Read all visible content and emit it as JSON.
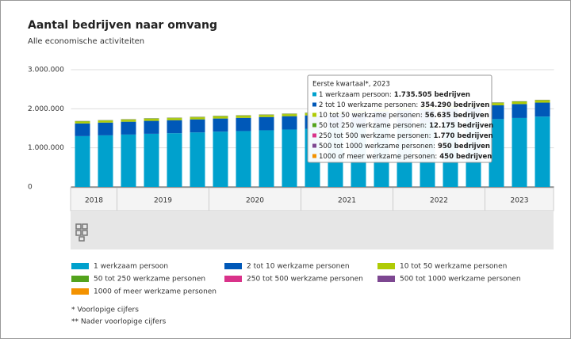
{
  "chart_data": {
    "type": "stacked_bar",
    "title": "Aantal bedrijven naar omvang",
    "subtitle": "Alle economische activiteiten",
    "categories": [
      null,
      null,
      null,
      null,
      null,
      null,
      null,
      null,
      null,
      null,
      null,
      null,
      null,
      null,
      null,
      null,
      null,
      null,
      null,
      null,
      null
    ],
    "x_groups": [
      {
        "label": "2018",
        "count": 2
      },
      {
        "label": "2019",
        "count": 4
      },
      {
        "label": "2020",
        "count": 4
      },
      {
        "label": "2021",
        "count": 4
      },
      {
        "label": "2022",
        "count": 4
      },
      {
        "label": "2023",
        "count": 3
      }
    ],
    "ylim": [
      0,
      3000000
    ],
    "yticks": [
      {
        "value": 0,
        "label": "0"
      },
      {
        "value": 1000000,
        "label": "1.000.000"
      },
      {
        "value": 2000000,
        "label": "2.000.000"
      },
      {
        "value": 3000000,
        "label": "3.000.000"
      }
    ],
    "series": [
      {
        "name": "1 werkzaam persoon",
        "color": "#00a1cd",
        "values": [
          1300000,
          1320000,
          1340000,
          1360000,
          1375000,
          1395000,
          1415000,
          1430000,
          1450000,
          1470000,
          1490000,
          1520000,
          1550000,
          1580000,
          1610000,
          1635000,
          1660000,
          1690000,
          1735505,
          1765000,
          1800000
        ]
      },
      {
        "name": "2 tot 10 werkzame personen",
        "color": "#0058b8",
        "values": [
          325000,
          327000,
          329000,
          331000,
          333000,
          334000,
          336000,
          338000,
          339000,
          340000,
          341000,
          342000,
          344000,
          346000,
          348000,
          349000,
          350000,
          352000,
          354290,
          356000,
          358000
        ]
      },
      {
        "name": "10 tot 50 werkzame personen",
        "color": "#afcb05",
        "values": [
          50000,
          50500,
          51000,
          51500,
          52000,
          52300,
          52600,
          52900,
          52000,
          52500,
          53000,
          53500,
          54000,
          54500,
          55000,
          55500,
          56000,
          56300,
          56635,
          57000,
          57300
        ]
      },
      {
        "name": "50 tot 250 werkzame personen",
        "color": "#53a31d",
        "values": [
          11000,
          11100,
          11200,
          11300,
          11400,
          11450,
          11500,
          11550,
          11500,
          11550,
          11600,
          11650,
          11700,
          11800,
          11900,
          12000,
          12050,
          12100,
          12175,
          12200,
          12250
        ]
      },
      {
        "name": "250 tot 500 werkzame personen",
        "color": "#d9328a",
        "values": [
          1600,
          1610,
          1620,
          1630,
          1640,
          1650,
          1660,
          1670,
          1660,
          1670,
          1680,
          1690,
          1700,
          1710,
          1720,
          1730,
          1740,
          1750,
          1770,
          1775,
          1780
        ]
      },
      {
        "name": "500 tot 1000 werkzame personen",
        "color": "#7d4791",
        "values": [
          850,
          855,
          860,
          865,
          870,
          875,
          880,
          885,
          880,
          885,
          890,
          895,
          900,
          910,
          920,
          925,
          930,
          940,
          950,
          955,
          960
        ]
      },
      {
        "name": "1000 of meer werkzame personen",
        "color": "#f39200",
        "values": [
          410,
          412,
          414,
          416,
          418,
          420,
          422,
          424,
          420,
          422,
          424,
          426,
          430,
          434,
          438,
          440,
          442,
          446,
          450,
          452,
          454
        ]
      }
    ],
    "tooltip": {
      "title": "Eerste kwartaal*, 2023",
      "items": [
        {
          "text": "1 werkzaam persoon:",
          "value": 1735505,
          "label": "1.735.505 bedrijven"
        },
        {
          "text": "2 tot 10 werkzame personen:",
          "value": 354290,
          "label": "354.290 bedrijven"
        },
        {
          "text": "10 tot 50 werkzame personen:",
          "value": 56635,
          "label": "56.635 bedrijven"
        },
        {
          "text": "50 tot 250 werkzame personen:",
          "value": 12175,
          "label": "12.175 bedrijven"
        },
        {
          "text": "250 tot 500 werkzame personen:",
          "value": 1770,
          "label": "1.770 bedrijven"
        },
        {
          "text": "500 tot 1000 werkzame personen:",
          "value": 950,
          "label": "950 bedrijven"
        },
        {
          "text": "1000 of meer werkzame personen:",
          "value": 450,
          "label": "450 bedrijven"
        }
      ]
    },
    "footnotes": [
      "* Voorlopige cijfers",
      "** Nader voorlopige cijfers"
    ]
  }
}
